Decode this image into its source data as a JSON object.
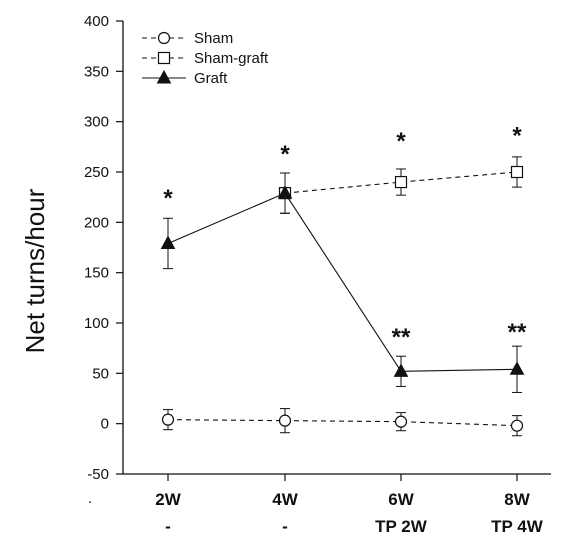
{
  "chart_data": {
    "type": "line",
    "ylabel": "Net turns/hour",
    "xlabel": "",
    "ylim": [
      -50,
      400
    ],
    "yticks": [
      -50,
      0,
      50,
      100,
      150,
      200,
      250,
      300,
      350,
      400
    ],
    "categories": [
      {
        "line1": "2W",
        "line2": "-"
      },
      {
        "line1": "4W",
        "line2": "-"
      },
      {
        "line1": "6W",
        "line2": "TP 2W"
      },
      {
        "line1": "8W",
        "line2": "TP 4W"
      }
    ],
    "stray_mark": ".",
    "legend": {
      "position": "top-left"
    },
    "series": [
      {
        "name": "Sham",
        "marker": "circle-open",
        "line": "dashed",
        "values": [
          4,
          3,
          2,
          -2
        ],
        "errors": [
          10,
          12,
          9,
          10
        ]
      },
      {
        "name": "Sham-graft",
        "marker": "square-open",
        "line": "dashed",
        "values": [
          null,
          229,
          240,
          250
        ],
        "errors": [
          null,
          20,
          13,
          15
        ]
      },
      {
        "name": "Graft",
        "marker": "triangle-filled",
        "line": "solid",
        "values": [
          179,
          229,
          52,
          54
        ],
        "errors": [
          25,
          20,
          15,
          23
        ]
      }
    ],
    "annotations": [
      {
        "category": 0,
        "y": 228,
        "text": "*"
      },
      {
        "category": 1,
        "y": 272,
        "text": "*"
      },
      {
        "category": 2,
        "y": 285,
        "text": "*"
      },
      {
        "category": 3,
        "y": 290,
        "text": "*"
      },
      {
        "category": 2,
        "y": 90,
        "text": "**"
      },
      {
        "category": 3,
        "y": 95,
        "text": "**"
      }
    ],
    "colors": {
      "ink": "#111111",
      "background": "#ffffff"
    }
  }
}
